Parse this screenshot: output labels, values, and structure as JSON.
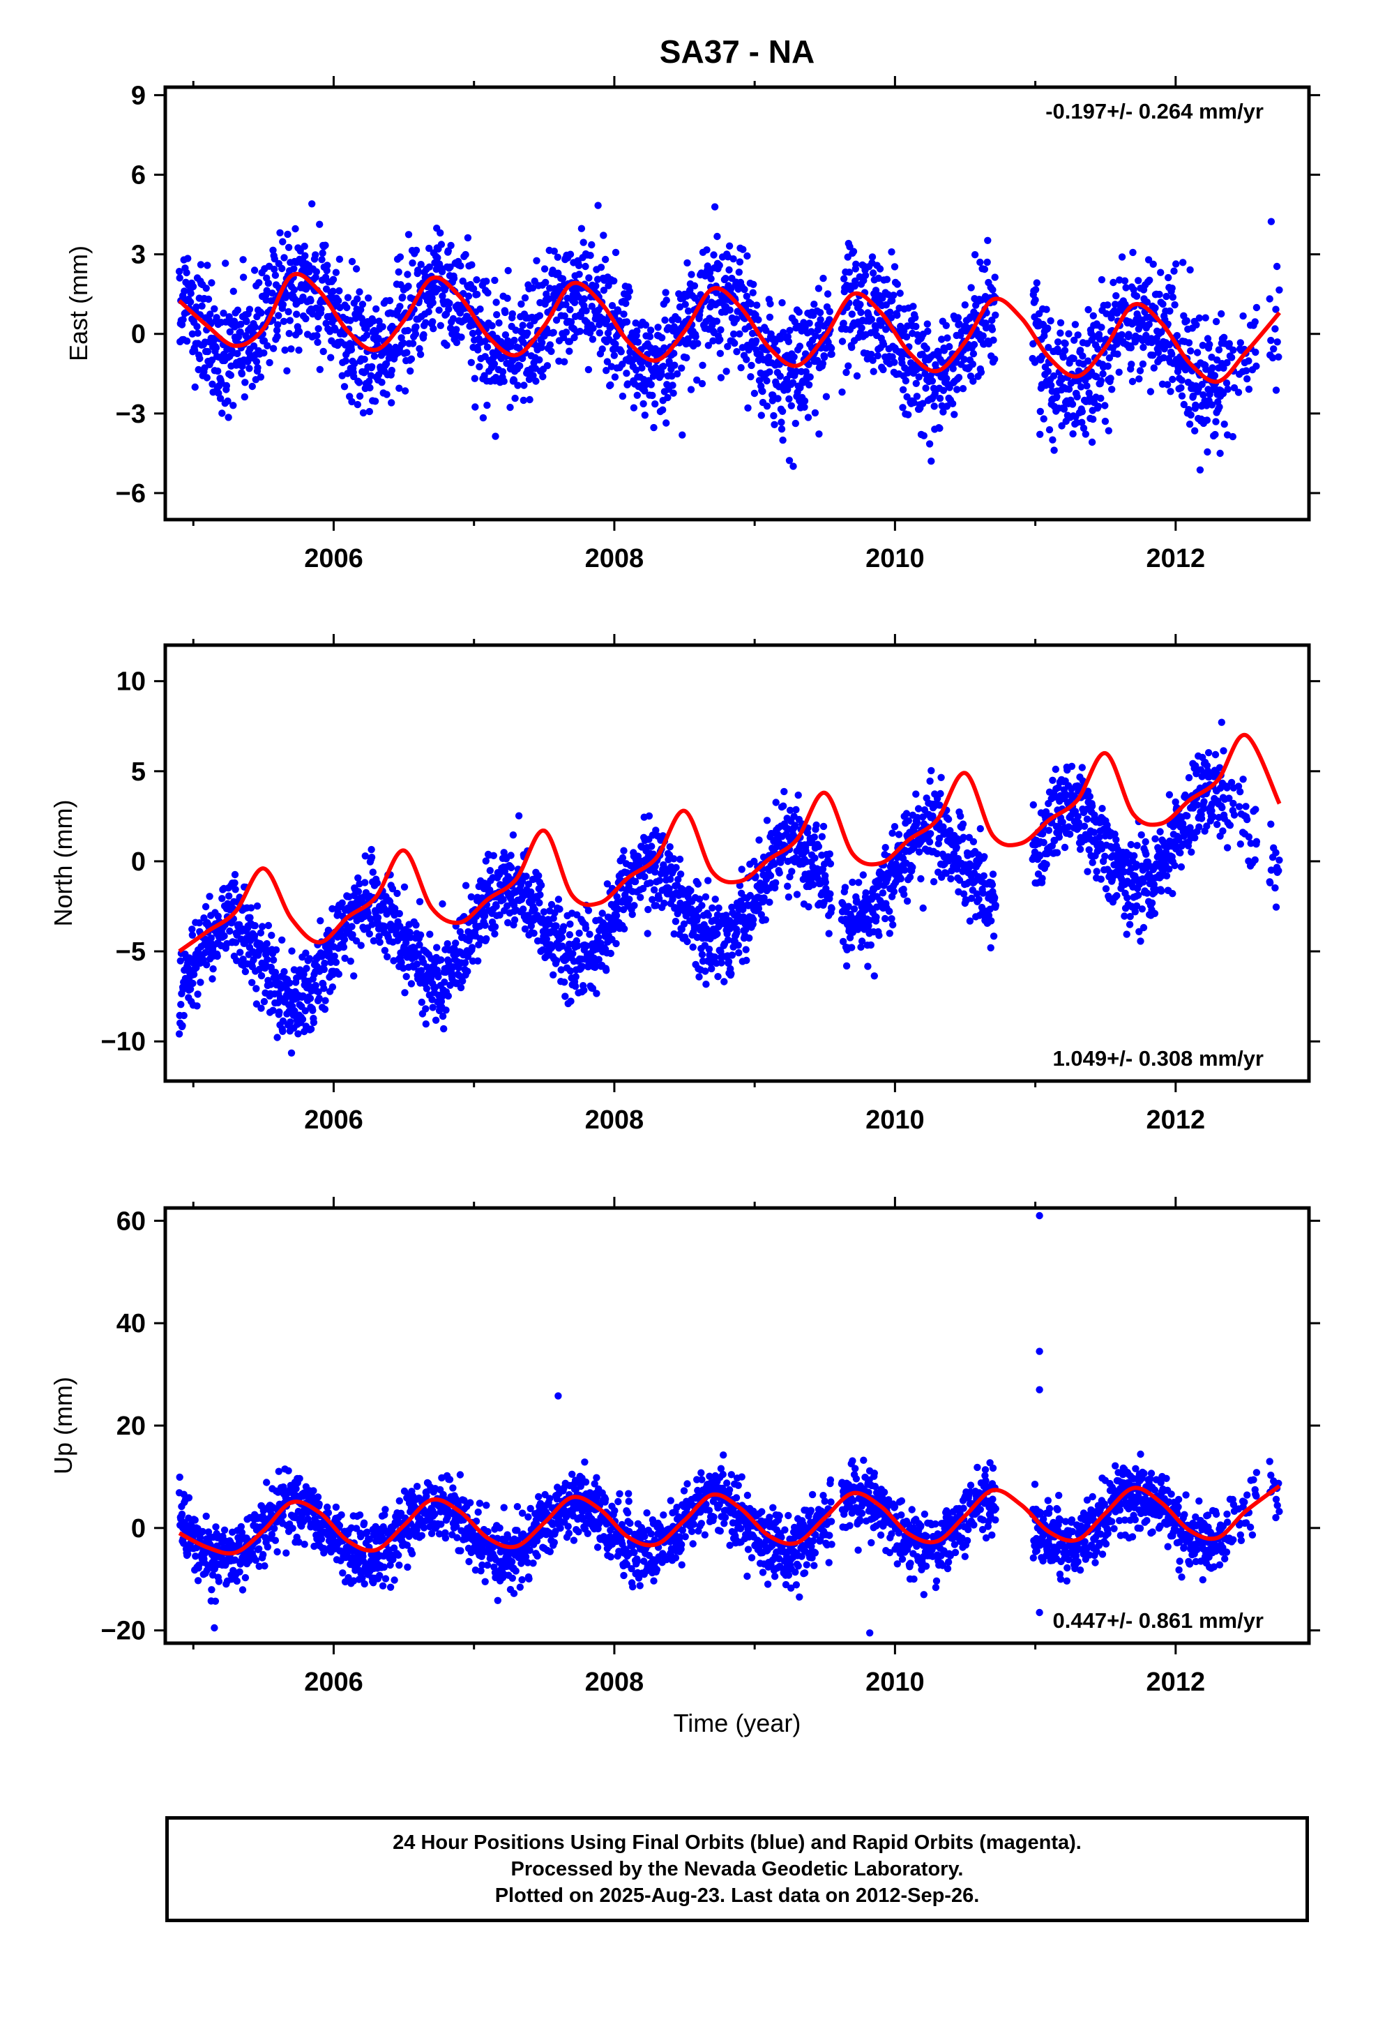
{
  "chart_data": {
    "type": "scatter",
    "title": "SA37 - NA",
    "xlabel": "Time (year)",
    "xlim": [
      2004.8,
      2012.95
    ],
    "xticks": [
      2006,
      2008,
      2010,
      2012
    ],
    "series_colors": {
      "final_orbits": "#0000ff",
      "model_fit": "#ff0000"
    },
    "time_range": [
      2004.9,
      2012.74
    ],
    "panels": [
      {
        "name": "east",
        "ylabel": "East (mm)",
        "ylim": [
          -7,
          9.3
        ],
        "yticks": [
          -6,
          -3,
          0,
          3,
          6,
          9
        ],
        "rate_text": "-0.197+/- 0.264 mm/yr",
        "rate_position": "top-right",
        "model": {
          "offset": 0.05,
          "trend": -0.197,
          "annual_amp": 1.35,
          "annual_phase": 0.75
        },
        "fit_curve": [
          [
            2004.9,
            1.25
          ],
          [
            2005.1,
            0.3
          ],
          [
            2005.3,
            -0.45
          ],
          [
            2005.5,
            0.2
          ],
          [
            2005.7,
            2.2
          ],
          [
            2005.9,
            1.6
          ],
          [
            2006.1,
            0.1
          ],
          [
            2006.3,
            -0.6
          ],
          [
            2006.5,
            0.5
          ],
          [
            2006.7,
            2.1
          ],
          [
            2006.9,
            1.4
          ],
          [
            2007.1,
            -0.1
          ],
          [
            2007.3,
            -0.8
          ],
          [
            2007.5,
            0.3
          ],
          [
            2007.7,
            1.9
          ],
          [
            2007.9,
            1.2
          ],
          [
            2008.1,
            -0.3
          ],
          [
            2008.3,
            -1.0
          ],
          [
            2008.5,
            0.1
          ],
          [
            2008.7,
            1.7
          ],
          [
            2008.9,
            1.0
          ],
          [
            2009.1,
            -0.5
          ],
          [
            2009.3,
            -1.2
          ],
          [
            2009.5,
            -0.1
          ],
          [
            2009.7,
            1.5
          ],
          [
            2009.9,
            0.8
          ],
          [
            2010.1,
            -0.7
          ],
          [
            2010.3,
            -1.4
          ],
          [
            2010.5,
            -0.3
          ],
          [
            2010.7,
            1.3
          ],
          [
            2010.9,
            0.6
          ],
          [
            2011.1,
            -0.9
          ],
          [
            2011.3,
            -1.6
          ],
          [
            2011.5,
            -0.5
          ],
          [
            2011.7,
            1.1
          ],
          [
            2011.9,
            0.4
          ],
          [
            2012.1,
            -1.1
          ],
          [
            2012.3,
            -1.8
          ],
          [
            2012.5,
            -0.7
          ],
          [
            2012.74,
            0.8
          ]
        ]
      },
      {
        "name": "north",
        "ylabel": "North (mm)",
        "ylim": [
          -12.2,
          12
        ],
        "yticks": [
          -10,
          -5,
          0,
          5,
          10
        ],
        "rate_text": "1.049+/- 0.308 mm/yr",
        "rate_position": "bottom-right",
        "model": {
          "offset": -2.0,
          "trend": 1.049,
          "annual_amp": 2.4,
          "annual_phase": 0.25
        },
        "fit_curve": [
          [
            2004.9,
            -5.0
          ],
          [
            2005.1,
            -3.9
          ],
          [
            2005.3,
            -2.8
          ],
          [
            2005.5,
            -0.4
          ],
          [
            2005.7,
            -3.2
          ],
          [
            2005.9,
            -4.5
          ],
          [
            2006.1,
            -3.1
          ],
          [
            2006.3,
            -2.0
          ],
          [
            2006.5,
            0.6
          ],
          [
            2006.7,
            -2.6
          ],
          [
            2006.9,
            -3.4
          ],
          [
            2007.1,
            -2.1
          ],
          [
            2007.3,
            -1.0
          ],
          [
            2007.5,
            1.7
          ],
          [
            2007.7,
            -1.9
          ],
          [
            2007.9,
            -2.3
          ],
          [
            2008.1,
            -0.9
          ],
          [
            2008.3,
            0.2
          ],
          [
            2008.5,
            2.8
          ],
          [
            2008.7,
            -0.6
          ],
          [
            2008.9,
            -1.1
          ],
          [
            2009.1,
            0.1
          ],
          [
            2009.3,
            1.2
          ],
          [
            2009.5,
            3.8
          ],
          [
            2009.7,
            0.4
          ],
          [
            2009.9,
            -0.1
          ],
          [
            2010.1,
            1.2
          ],
          [
            2010.3,
            2.3
          ],
          [
            2010.5,
            4.9
          ],
          [
            2010.7,
            1.4
          ],
          [
            2010.9,
            1.0
          ],
          [
            2011.1,
            2.3
          ],
          [
            2011.3,
            3.4
          ],
          [
            2011.5,
            6.0
          ],
          [
            2011.7,
            2.6
          ],
          [
            2011.9,
            2.1
          ],
          [
            2012.1,
            3.4
          ],
          [
            2012.3,
            4.5
          ],
          [
            2012.5,
            7.0
          ],
          [
            2012.74,
            3.2
          ]
        ]
      },
      {
        "name": "up",
        "ylabel": "Up (mm)",
        "ylim": [
          -22.5,
          62.5
        ],
        "yticks": [
          -20,
          0,
          20,
          40,
          60
        ],
        "rate_text": "0.447+/- 0.861 mm/yr",
        "rate_position": "bottom-right",
        "model": {
          "offset": 0.5,
          "trend": 0.447,
          "annual_amp": 5.0,
          "annual_phase": 0.72
        },
        "fit_curve": [
          [
            2004.9,
            -1.0
          ],
          [
            2005.1,
            -3.8
          ],
          [
            2005.3,
            -4.8
          ],
          [
            2005.5,
            -0.5
          ],
          [
            2005.7,
            5.0
          ],
          [
            2005.9,
            3.0
          ],
          [
            2006.1,
            -2.5
          ],
          [
            2006.3,
            -4.3
          ],
          [
            2006.5,
            0.5
          ],
          [
            2006.7,
            5.5
          ],
          [
            2006.9,
            3.2
          ],
          [
            2007.1,
            -2.0
          ],
          [
            2007.3,
            -3.6
          ],
          [
            2007.5,
            1.0
          ],
          [
            2007.7,
            6.0
          ],
          [
            2007.9,
            3.6
          ],
          [
            2008.1,
            -1.8
          ],
          [
            2008.3,
            -3.2
          ],
          [
            2008.5,
            1.5
          ],
          [
            2008.7,
            6.5
          ],
          [
            2008.9,
            3.8
          ],
          [
            2009.1,
            -1.5
          ],
          [
            2009.3,
            -2.9
          ],
          [
            2009.5,
            2.0
          ],
          [
            2009.7,
            6.8
          ],
          [
            2009.9,
            4.2
          ],
          [
            2010.1,
            -1.2
          ],
          [
            2010.3,
            -2.6
          ],
          [
            2010.5,
            2.4
          ],
          [
            2010.7,
            7.4
          ],
          [
            2010.9,
            4.5
          ],
          [
            2011.1,
            -0.8
          ],
          [
            2011.3,
            -2.3
          ],
          [
            2011.5,
            2.9
          ],
          [
            2011.7,
            7.8
          ],
          [
            2011.9,
            4.9
          ],
          [
            2012.1,
            -0.5
          ],
          [
            2012.3,
            -1.9
          ],
          [
            2012.5,
            3.3
          ],
          [
            2012.74,
            8.2
          ]
        ],
        "outliers": [
          [
            2011.03,
            61
          ],
          [
            2011.03,
            34.5
          ],
          [
            2011.03,
            27
          ],
          [
            2011.03,
            -16.5
          ],
          [
            2007.6,
            25.8
          ],
          [
            2009.82,
            -20.5
          ],
          [
            2005.15,
            -19.5
          ]
        ]
      }
    ]
  },
  "footer": {
    "line1": "24 Hour Positions Using Final Orbits (blue) and Rapid Orbits (magenta).",
    "line2": "Processed by the Nevada Geodetic Laboratory.",
    "line3": "Plotted on 2025-Aug-23. Last data on 2012-Sep-26."
  }
}
